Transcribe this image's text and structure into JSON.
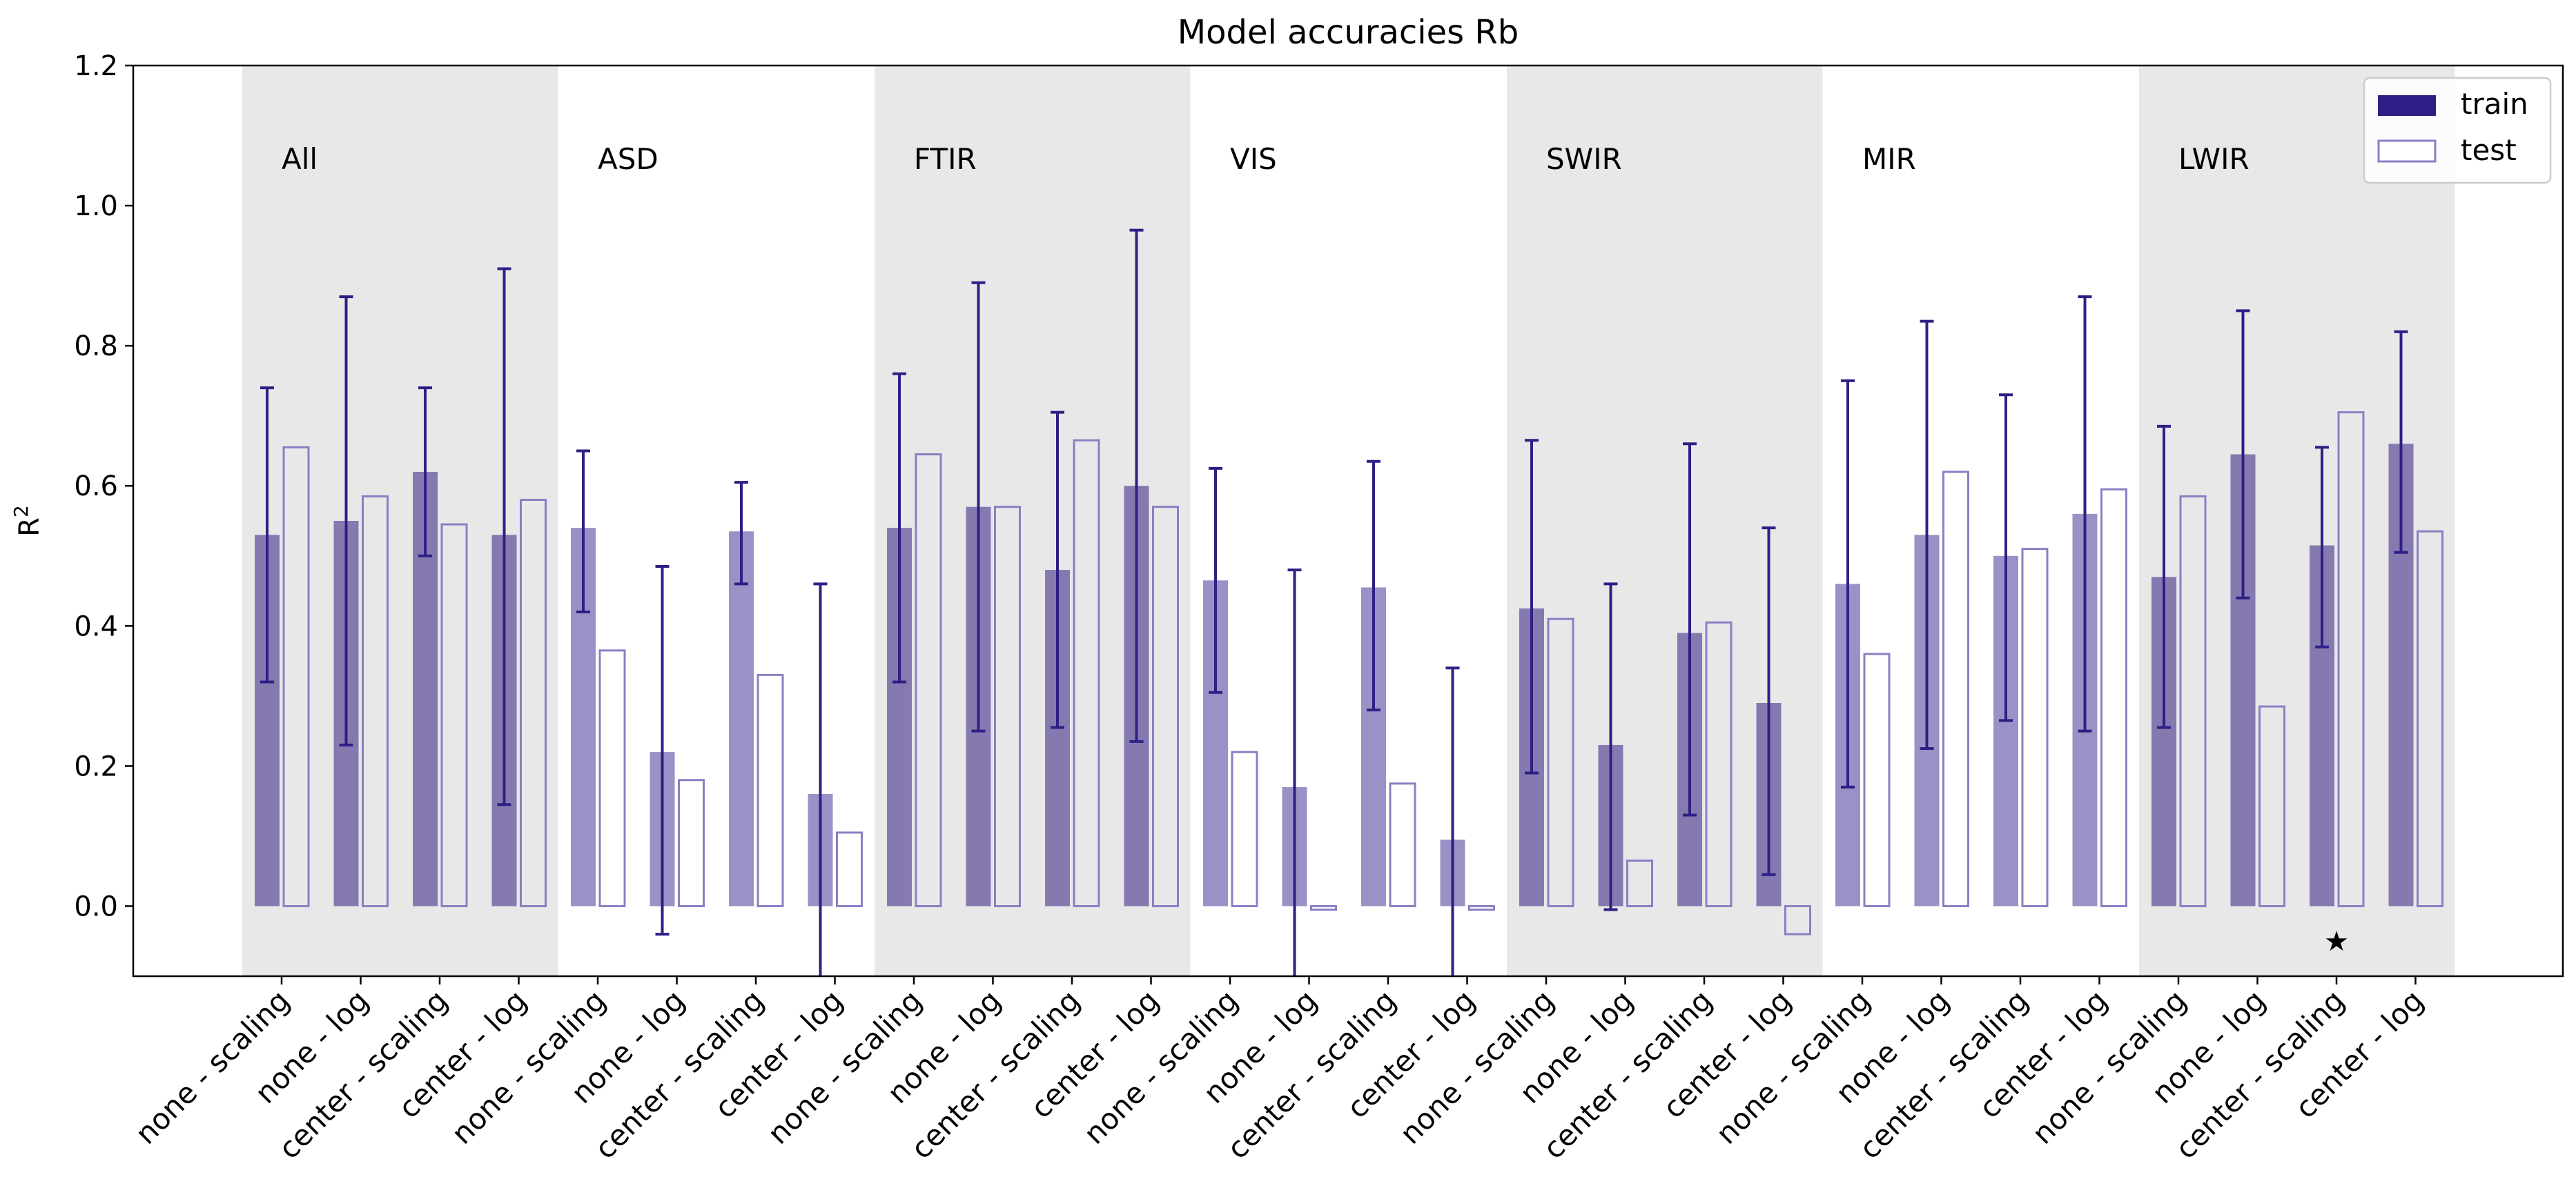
{
  "chart_data": {
    "type": "bar",
    "title": "Model accuracies Rb",
    "xlabel": "",
    "ylabel": "R",
    "ylabel_superscript": "2",
    "ylim": [
      -0.1,
      1.2
    ],
    "yticks": [
      0.0,
      0.2,
      0.4,
      0.6,
      0.8,
      1.0,
      1.2
    ],
    "ytick_labels": [
      "0.0",
      "0.2",
      "0.4",
      "0.6",
      "0.8",
      "1.0",
      "1.2"
    ],
    "categories": [
      "none - scaling",
      "none - log",
      "center - scaling",
      "center - log",
      "none - scaling",
      "none - log",
      "center - scaling",
      "center - log",
      "none - scaling",
      "none - log",
      "center - scaling",
      "center - log",
      "none - scaling",
      "none - log",
      "center - scaling",
      "center - log",
      "none - scaling",
      "none - log",
      "center - scaling",
      "center - log",
      "none - scaling",
      "none - log",
      "center - scaling",
      "center - log",
      "none - scaling",
      "none - log",
      "center - scaling",
      "center - log"
    ],
    "groups": [
      {
        "name": "All",
        "shaded": true
      },
      {
        "name": "ASD",
        "shaded": false
      },
      {
        "name": "FTIR",
        "shaded": true
      },
      {
        "name": "VIS",
        "shaded": false
      },
      {
        "name": "SWIR",
        "shaded": true
      },
      {
        "name": "MIR",
        "shaded": false
      },
      {
        "name": "LWIR",
        "shaded": true
      }
    ],
    "series": [
      {
        "name": "train",
        "values": [
          0.53,
          0.55,
          0.62,
          0.53,
          0.54,
          0.22,
          0.535,
          0.16,
          0.54,
          0.57,
          0.48,
          0.6,
          0.465,
          0.17,
          0.455,
          0.095,
          0.425,
          0.23,
          0.39,
          0.29,
          0.46,
          0.53,
          0.5,
          0.56,
          0.47,
          0.645,
          0.515,
          0.66
        ],
        "err_low": [
          0.32,
          0.23,
          0.5,
          0.145,
          0.42,
          -0.04,
          0.46,
          -0.14,
          0.32,
          0.25,
          0.255,
          0.235,
          0.305,
          -0.14,
          0.28,
          -0.15,
          0.19,
          -0.005,
          0.13,
          0.045,
          0.17,
          0.225,
          0.265,
          0.25,
          0.255,
          0.44,
          0.37,
          0.505
        ],
        "err_high": [
          0.74,
          0.87,
          0.74,
          0.91,
          0.65,
          0.485,
          0.605,
          0.46,
          0.76,
          0.89,
          0.705,
          0.965,
          0.625,
          0.48,
          0.635,
          0.34,
          0.665,
          0.46,
          0.66,
          0.54,
          0.75,
          0.835,
          0.73,
          0.87,
          0.685,
          0.85,
          0.655,
          0.82
        ]
      },
      {
        "name": "test",
        "values": [
          0.655,
          0.585,
          0.545,
          0.58,
          0.365,
          0.18,
          0.33,
          0.105,
          0.645,
          0.57,
          0.665,
          0.57,
          0.22,
          -0.005,
          0.175,
          -0.005,
          0.41,
          0.065,
          0.405,
          -0.04,
          0.36,
          0.62,
          0.51,
          0.595,
          0.585,
          0.285,
          0.705,
          0.535
        ]
      }
    ],
    "annotations": [
      {
        "text": "★",
        "category_index": 26,
        "y": -0.05
      }
    ],
    "colors": {
      "train_shaded": "#8679b0",
      "train_unshaded": "#9c91c6",
      "error_bar": "#2e1f86",
      "test_edge": "#8a7fc4",
      "legend_train": "#2e1f86",
      "shade": "#e8e8e8"
    },
    "legend": {
      "position": "top-right",
      "entries": [
        "train",
        "test"
      ]
    }
  }
}
